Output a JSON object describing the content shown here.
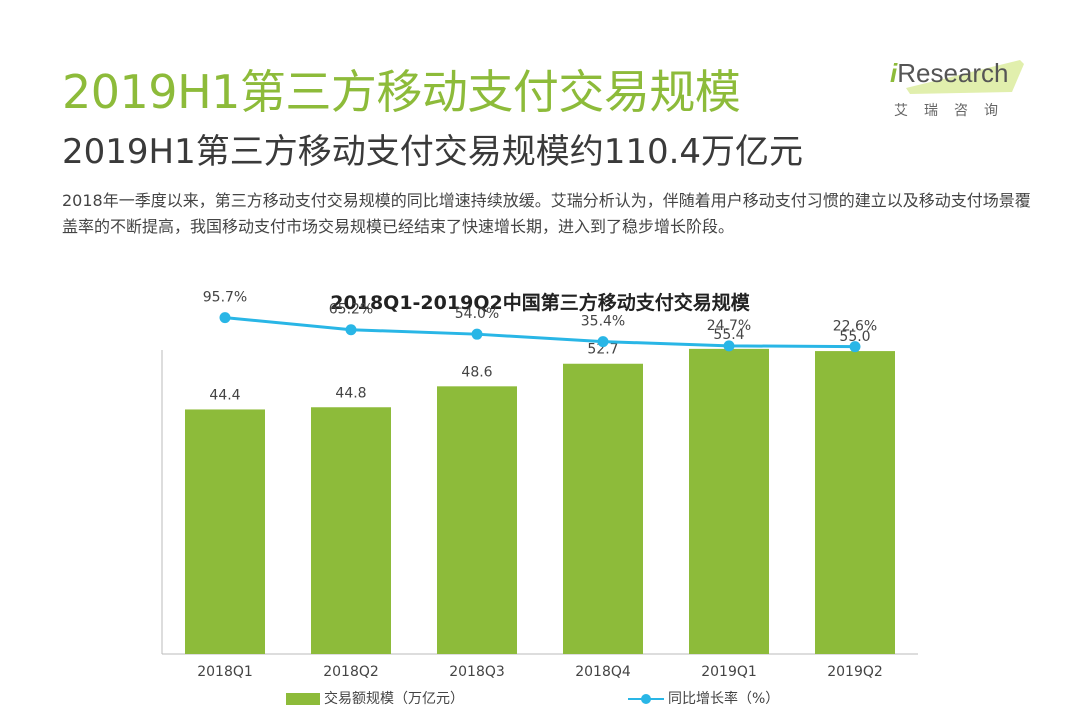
{
  "header": {
    "title": "2019H1第三方移动支付交易规模",
    "subtitle": "2019H1第三方移动支付交易规模约110.4万亿元",
    "description": "2018年一季度以来，第三方移动支付交易规模的同比增速持续放缓。艾瑞分析认为，伴随着用户移动支付习惯的建立以及移动支付场景覆盖率的不断提高，我国移动支付市场交易规模已经结束了快速增长期，进入到了稳步增长阶段。"
  },
  "logo": {
    "prefix": "i",
    "name": "Research",
    "cn": "艾瑞咨询"
  },
  "colors": {
    "title_green": "#8dbb3a",
    "bar": "#8dbb3a",
    "line": "#29b6e6",
    "axis": "#bbbbbb"
  },
  "chart_data": {
    "type": "bar",
    "title": "2018Q1-2019Q2中国第三方移动支付交易规模",
    "categories": [
      "2018Q1",
      "2018Q2",
      "2018Q3",
      "2018Q4",
      "2019Q1",
      "2019Q2"
    ],
    "series": [
      {
        "name": "交易额规模（万亿元）",
        "type": "bar",
        "values": [
          44.4,
          44.8,
          48.6,
          52.7,
          55.4,
          55.0
        ],
        "labels": [
          "44.4",
          "44.8",
          "48.6",
          "52.7",
          "55.4",
          "55.0"
        ]
      },
      {
        "name": "同比增长率（%）",
        "type": "line",
        "values": [
          95.7,
          65.2,
          54.0,
          35.4,
          24.7,
          22.6
        ],
        "labels": [
          "95.7%",
          "65.2%",
          "54.0%",
          "35.4%",
          "24.7%",
          "22.6%"
        ]
      }
    ],
    "ylim_bar": [
      0,
      65
    ],
    "ylim_line": [
      -750,
      150
    ],
    "grid": false,
    "legend_position": "bottom"
  }
}
